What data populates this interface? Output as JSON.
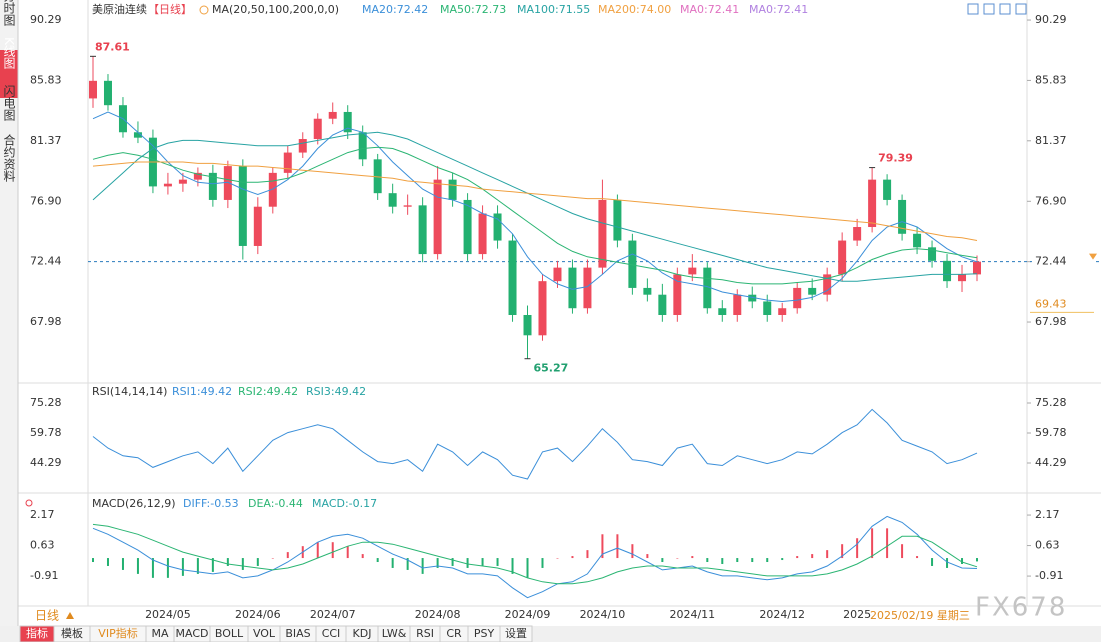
{
  "sidebar": {
    "tabs": [
      "分时图",
      "K线图",
      "闪电图",
      "合约资料"
    ]
  },
  "chart_data": {
    "type": "candlestick",
    "title": "美原油连续",
    "period": "【日线】",
    "ma_header": "MA(20,50,100,200,0,0)",
    "ma_legend": [
      {
        "label": "MA20:72.42",
        "color": "#3b8fd9"
      },
      {
        "label": "MA50:72.73",
        "color": "#2bb573"
      },
      {
        "label": "MA100:71.55",
        "color": "#27a3a3"
      },
      {
        "label": "MA200:74.00",
        "color": "#f0a040"
      },
      {
        "label": "MA0:72.41",
        "color": "#e070c0"
      },
      {
        "label": "MA0:72.41",
        "color": "#b080e0"
      }
    ],
    "up_color": "#ee4a5c",
    "down_color": "#22b070",
    "ylim": [
      63.55,
      91.18
    ],
    "yticks": [
      67.98,
      72.44,
      {
        "value": 76.9,
        "label": "76.90"
      },
      81.37,
      85.83,
      90.29
    ],
    "ref_price": 69.43,
    "categories": [
      null,
      null,
      null,
      null,
      null,
      "2024/05",
      null,
      null,
      null,
      null,
      null,
      "2024/06",
      null,
      null,
      null,
      null,
      "2024/07",
      null,
      null,
      null,
      null,
      null,
      null,
      "2024/08",
      null,
      null,
      null,
      null,
      null,
      "2024/09",
      null,
      null,
      null,
      null,
      "2024/10",
      null,
      null,
      null,
      null,
      null,
      "2024/11",
      null,
      null,
      null,
      null,
      null,
      "2024/12",
      null,
      null,
      null,
      null,
      "2025",
      null,
      null,
      null,
      null,
      null,
      null,
      null,
      null
    ],
    "date_label": "2025/02/19 星期三",
    "candles": {
      "open": [
        84.5,
        85.8,
        84.0,
        82.0,
        81.6,
        78.0,
        78.2,
        78.5,
        79.0,
        77.0,
        79.5,
        73.6,
        76.5,
        79.0,
        80.5,
        81.5,
        83.0,
        83.5,
        82.0,
        80.0,
        77.5,
        76.5,
        76.6,
        73.0,
        78.5,
        77.0,
        73.0,
        76.0,
        74.0,
        68.5,
        67.0,
        71.0,
        72.0,
        69.0,
        72.0,
        77.0,
        74.0,
        70.5,
        70.0,
        68.5,
        71.5,
        72.0,
        69.0,
        68.5,
        70.0,
        69.5,
        68.5,
        69.0,
        70.5,
        70.0,
        71.5,
        74.0,
        75.0,
        78.5,
        77.0,
        74.5,
        73.5,
        72.5,
        71.0,
        71.5
      ],
      "high": [
        87.61,
        86.3,
        84.6,
        82.8,
        82.2,
        79.0,
        79.0,
        79.4,
        79.6,
        79.9,
        80.0,
        77.2,
        79.4,
        81.0,
        82.0,
        83.4,
        84.2,
        84.0,
        82.5,
        80.4,
        78.2,
        77.4,
        77.2,
        79.5,
        79.0,
        77.5,
        76.6,
        76.6,
        74.5,
        69.2,
        71.5,
        72.5,
        72.6,
        72.6,
        78.5,
        77.4,
        74.5,
        71.2,
        70.8,
        72.0,
        73.0,
        72.4,
        69.6,
        70.4,
        70.6,
        70.0,
        69.4,
        70.9,
        71.2,
        72.0,
        74.6,
        75.6,
        79.39,
        78.9,
        77.4,
        75.0,
        74.0,
        73.0,
        72.2,
        72.9
      ],
      "low": [
        83.8,
        83.6,
        81.6,
        81.2,
        77.5,
        77.4,
        77.6,
        78.0,
        76.5,
        76.4,
        72.6,
        73.0,
        76.0,
        78.6,
        80.1,
        81.1,
        82.6,
        81.5,
        79.5,
        77.0,
        76.0,
        75.9,
        72.4,
        72.6,
        76.5,
        72.5,
        72.6,
        73.4,
        68.0,
        65.27,
        66.6,
        70.5,
        68.6,
        68.6,
        71.5,
        73.5,
        70.0,
        69.5,
        68.0,
        68.0,
        71.0,
        68.6,
        68.0,
        68.0,
        69.0,
        68.0,
        68.0,
        68.6,
        69.6,
        69.5,
        71.0,
        73.6,
        74.6,
        76.6,
        74.0,
        73.0,
        72.0,
        70.5,
        70.2,
        71.0
      ],
      "close": [
        85.8,
        84.0,
        82.0,
        81.6,
        78.0,
        78.2,
        78.5,
        79.0,
        77.0,
        79.5,
        73.6,
        76.5,
        79.0,
        80.5,
        81.5,
        83.0,
        83.5,
        82.0,
        80.0,
        77.5,
        76.5,
        76.6,
        73.0,
        78.5,
        77.0,
        73.0,
        76.0,
        74.0,
        68.5,
        67.0,
        71.0,
        72.0,
        69.0,
        72.0,
        77.0,
        74.0,
        70.5,
        70.0,
        68.5,
        71.5,
        72.0,
        69.0,
        68.5,
        70.0,
        69.5,
        68.5,
        69.0,
        70.5,
        70.0,
        71.5,
        74.0,
        75.0,
        78.5,
        77.0,
        74.5,
        73.5,
        72.5,
        71.0,
        71.5,
        72.44
      ]
    },
    "ma_series": [
      {
        "name": "MA20",
        "color": "#3b8fd9",
        "values": [
          83.0,
          83.5,
          83.0,
          82.0,
          81.0,
          79.8,
          78.8,
          78.3,
          78.2,
          78.3,
          77.8,
          77.4,
          77.8,
          78.5,
          79.5,
          80.8,
          81.8,
          82.3,
          82.0,
          81.0,
          79.8,
          78.8,
          77.8,
          77.2,
          77.0,
          76.6,
          76.0,
          75.6,
          74.5,
          72.8,
          71.5,
          70.8,
          70.4,
          70.6,
          71.5,
          72.5,
          73.0,
          72.5,
          71.6,
          71.0,
          70.8,
          70.6,
          70.2,
          70.0,
          69.8,
          69.6,
          69.5,
          69.6,
          69.8,
          70.3,
          71.2,
          72.5,
          74.0,
          75.0,
          75.4,
          75.0,
          74.2,
          73.4,
          72.8,
          72.42
        ]
      },
      {
        "name": "MA50",
        "color": "#2bb573",
        "values": [
          80.0,
          80.3,
          80.5,
          80.3,
          80.0,
          79.6,
          79.2,
          78.9,
          78.7,
          78.5,
          78.3,
          78.3,
          78.4,
          78.6,
          79.0,
          79.5,
          80.0,
          80.5,
          80.8,
          80.9,
          80.8,
          80.4,
          79.9,
          79.4,
          79.0,
          78.5,
          77.8,
          77.0,
          76.2,
          75.4,
          74.6,
          73.8,
          73.2,
          72.8,
          72.6,
          72.4,
          72.2,
          72.0,
          71.8,
          71.5,
          71.3,
          71.2,
          71.1,
          70.9,
          70.8,
          70.8,
          70.8,
          70.9,
          71.0,
          71.2,
          71.5,
          72.0,
          72.6,
          73.0,
          73.3,
          73.4,
          73.3,
          73.1,
          72.9,
          72.73
        ]
      },
      {
        "name": "MA100",
        "color": "#27a3a3",
        "values": [
          77.0,
          78.0,
          79.0,
          80.0,
          80.8,
          81.2,
          81.4,
          81.4,
          81.3,
          81.2,
          81.1,
          81.0,
          81.0,
          81.0,
          81.2,
          81.4,
          81.6,
          81.8,
          81.9,
          82.0,
          81.8,
          81.5,
          81.0,
          80.5,
          80.0,
          79.5,
          79.0,
          78.5,
          78.0,
          77.5,
          77.0,
          76.5,
          76.0,
          75.6,
          75.3,
          75.0,
          74.7,
          74.4,
          74.1,
          73.8,
          73.5,
          73.2,
          72.9,
          72.6,
          72.3,
          72.0,
          71.8,
          71.6,
          71.4,
          71.2,
          71.0,
          71.0,
          71.1,
          71.2,
          71.3,
          71.4,
          71.5,
          71.5,
          71.5,
          71.55
        ]
      },
      {
        "name": "MA200",
        "color": "#f0a040",
        "values": [
          79.5,
          79.6,
          79.7,
          79.8,
          79.8,
          79.8,
          79.8,
          79.7,
          79.7,
          79.6,
          79.5,
          79.5,
          79.4,
          79.3,
          79.2,
          79.1,
          79.0,
          78.9,
          78.8,
          78.7,
          78.6,
          78.4,
          78.3,
          78.2,
          78.1,
          78.0,
          77.8,
          77.7,
          77.6,
          77.5,
          77.4,
          77.3,
          77.2,
          77.1,
          77.1,
          77.0,
          76.9,
          76.8,
          76.7,
          76.6,
          76.5,
          76.4,
          76.3,
          76.2,
          76.1,
          76.0,
          75.9,
          75.8,
          75.7,
          75.6,
          75.5,
          75.4,
          75.3,
          75.1,
          74.9,
          74.7,
          74.5,
          74.3,
          74.2,
          74.0
        ]
      }
    ],
    "rsi": {
      "header": "RSI(14,14,14)",
      "legend": [
        {
          "label": "RSI1:49.42",
          "color": "#3b8fd9"
        },
        {
          "label": "RSI2:49.42",
          "color": "#2bb573"
        },
        {
          "label": "RSI3:49.42",
          "color": "#27a3a3"
        }
      ],
      "color": "#3b8fd9",
      "ylim": [
        30.34,
        84.58
      ],
      "yticks": [
        44.29,
        59.78,
        75.28
      ],
      "values": [
        58,
        52,
        48,
        47,
        42,
        45,
        48,
        50,
        44,
        52,
        40,
        48,
        56,
        60,
        62,
        64,
        62,
        56,
        50,
        45,
        44,
        46,
        40,
        54,
        50,
        43,
        50,
        46,
        38,
        36,
        50,
        52,
        45,
        53,
        62,
        55,
        46,
        45,
        43,
        52,
        54,
        44,
        43,
        48,
        46,
        44,
        46,
        50,
        49,
        54,
        60,
        64,
        72,
        65,
        56,
        53,
        50,
        44,
        46,
        49.42
      ]
    },
    "macd": {
      "header": "MACD(26,12,9)",
      "legend": [
        {
          "label": "DIFF:-0.53",
          "color": "#3b8fd9"
        },
        {
          "label": "DEA:-0.44",
          "color": "#2bb573"
        },
        {
          "label": "MACD:-0.17",
          "color": "#27a3a3"
        }
      ],
      "dif_color": "#3b8fd9",
      "dea_color": "#2bb573",
      "ylim": [
        -2.37,
        2.93
      ],
      "yticks": [
        -0.91,
        0.63,
        2.17
      ],
      "dif": [
        1.5,
        1.2,
        0.8,
        0.4,
        -0.1,
        -0.4,
        -0.6,
        -0.7,
        -0.8,
        -0.7,
        -1.0,
        -0.9,
        -0.6,
        -0.2,
        0.3,
        0.8,
        1.1,
        1.2,
        1.0,
        0.6,
        0.2,
        -0.1,
        -0.5,
        -0.4,
        -0.5,
        -0.8,
        -0.8,
        -0.9,
        -1.5,
        -2.0,
        -1.7,
        -1.3,
        -1.2,
        -0.8,
        0.2,
        0.5,
        0.2,
        -0.2,
        -0.6,
        -0.5,
        -0.4,
        -0.7,
        -0.9,
        -0.9,
        -1.0,
        -1.1,
        -1.0,
        -0.8,
        -0.7,
        -0.4,
        0.1,
        0.7,
        1.6,
        2.1,
        1.8,
        1.2,
        0.4,
        -0.2,
        -0.5,
        -0.53
      ],
      "dea": [
        1.7,
        1.6,
        1.4,
        1.2,
        0.9,
        0.6,
        0.3,
        0.1,
        -0.1,
        -0.3,
        -0.4,
        -0.5,
        -0.6,
        -0.5,
        -0.3,
        0.0,
        0.3,
        0.6,
        0.8,
        0.8,
        0.7,
        0.5,
        0.3,
        0.1,
        -0.1,
        -0.3,
        -0.4,
        -0.5,
        -0.7,
        -1.0,
        -1.2,
        -1.3,
        -1.3,
        -1.2,
        -1.0,
        -0.7,
        -0.5,
        -0.4,
        -0.4,
        -0.5,
        -0.5,
        -0.5,
        -0.6,
        -0.7,
        -0.8,
        -0.9,
        -0.9,
        -0.9,
        -0.9,
        -0.8,
        -0.6,
        -0.3,
        0.1,
        0.6,
        1.1,
        1.1,
        0.8,
        0.3,
        -0.2,
        -0.44
      ],
      "hist": [
        -0.2,
        -0.4,
        -0.6,
        -0.8,
        -1.0,
        -1.0,
        -0.9,
        -0.8,
        -0.7,
        -0.4,
        -0.6,
        -0.4,
        0.0,
        0.3,
        0.6,
        0.8,
        0.8,
        0.6,
        0.2,
        -0.2,
        -0.5,
        -0.6,
        -0.8,
        -0.5,
        -0.4,
        -0.5,
        -0.4,
        -0.4,
        -0.8,
        -1.0,
        -0.5,
        0.0,
        0.1,
        0.4,
        1.2,
        1.2,
        0.7,
        0.2,
        -0.2,
        0.0,
        0.1,
        -0.2,
        -0.3,
        -0.2,
        -0.2,
        -0.2,
        -0.1,
        0.1,
        0.2,
        0.4,
        0.7,
        1.0,
        1.5,
        1.5,
        0.7,
        0.1,
        -0.4,
        -0.5,
        -0.3,
        -0.17
      ]
    },
    "period_selector": "日线"
  },
  "toolbar": {
    "tabs": [
      "指标",
      "模板",
      "VIP指标",
      "MA",
      "MACD",
      "BOLL",
      "VOL",
      "BIAS",
      "CCI",
      "KDJ",
      "LW&",
      "RSI",
      "CR",
      "PSY",
      "设置"
    ]
  },
  "watermark": "FX678"
}
